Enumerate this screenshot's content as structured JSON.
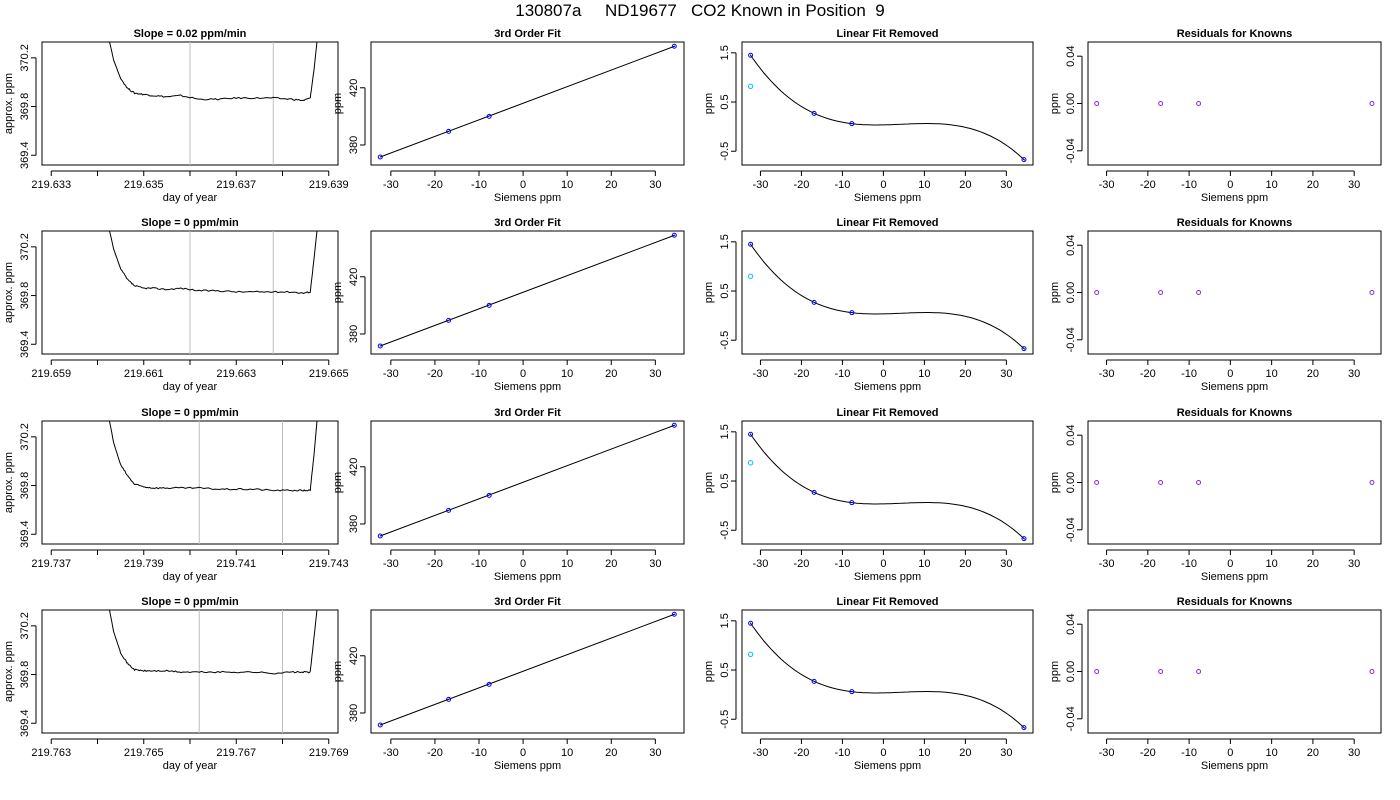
{
  "page": {
    "title": "130807a     ND19677   CO2 Known in Position  9"
  },
  "style": {
    "ink": "#000000",
    "vline_color": "#bebebe",
    "point_blue": "#0000ff",
    "point_cyan": "#00bfff",
    "point_purple": "#8a2be2"
  },
  "chart_data": [
    {
      "type": "line",
      "panel": "trace",
      "row": 1,
      "title": "Slope =  0.02  ppm/min",
      "xlabel": "day of year",
      "ylabel": "approx. ppm",
      "xlim": [
        219.6328,
        219.6392
      ],
      "ylim": [
        369.32,
        370.33
      ],
      "xticks": [
        "219.633",
        "219.634",
        "219.635",
        "219.636",
        "219.637",
        "219.638",
        "219.639"
      ],
      "xtick_labels": [
        "219.633",
        "",
        "219.635",
        "",
        "219.637",
        "",
        "219.639"
      ],
      "yticks": [
        "369.4",
        "369.8",
        "370.2"
      ],
      "vlines": [
        219.636,
        219.6378
      ],
      "x": [
        219.63425,
        219.63435,
        219.6345,
        219.63465,
        219.6348,
        219.635,
        219.6352,
        219.6355,
        219.6358,
        219.6362,
        219.6366,
        219.637,
        219.6374,
        219.6378,
        219.6382,
        219.63845,
        219.6386,
        219.63868,
        219.63875
      ],
      "y": [
        370.35,
        370.18,
        370.03,
        369.95,
        369.91,
        369.9,
        369.89,
        369.88,
        369.89,
        369.86,
        369.86,
        369.87,
        369.87,
        369.87,
        369.86,
        369.85,
        369.87,
        370.1,
        370.35
      ]
    },
    {
      "type": "scatter",
      "panel": "fit",
      "row": 1,
      "title": "3rd Order Fit",
      "xlabel": "Siemens ppm",
      "ylabel": "ppm",
      "xlim": [
        -34.5,
        36.5
      ],
      "ylim": [
        366,
        452
      ],
      "xticks": [
        "-30",
        "-20",
        "-10",
        "0",
        "10",
        "20",
        "30"
      ],
      "yticks": [
        "380",
        "420"
      ],
      "line": {
        "x": [
          -32.5,
          34.5
        ],
        "y": [
          371.5,
          449.2
        ]
      },
      "points": {
        "x": [
          -32.4,
          -16.9,
          -7.7,
          34.3
        ],
        "y": [
          371.6,
          389.5,
          400.0,
          449.0
        ]
      }
    },
    {
      "type": "scatter",
      "panel": "resid_linear",
      "row": 1,
      "title": "Linear Fit Removed",
      "xlabel": "Siemens ppm",
      "ylabel": "ppm",
      "xlim": [
        -34.5,
        36.5
      ],
      "ylim": [
        -0.78,
        1.72
      ],
      "xticks": [
        "-30",
        "-20",
        "-10",
        "0",
        "10",
        "20",
        "30"
      ],
      "yticks": [
        "-0.5",
        "0.5",
        "1.5"
      ],
      "points": {
        "x": [
          -32.4,
          -16.9,
          -7.7,
          34.3
        ],
        "y": [
          1.45,
          0.27,
          0.06,
          -0.67
        ]
      },
      "unknown": {
        "x": [
          -32.4
        ],
        "y": [
          0.82
        ]
      }
    },
    {
      "type": "scatter",
      "panel": "resid_knowns",
      "row": 1,
      "title": "Residuals for Knowns",
      "xlabel": "Siemens ppm",
      "ylabel": "ppm",
      "xlim": [
        -34.5,
        36.5
      ],
      "ylim": [
        -0.052,
        0.052
      ],
      "xticks": [
        "-30",
        "-20",
        "-10",
        "0",
        "10",
        "20",
        "30"
      ],
      "yticks": [
        "-0.04",
        "0.00",
        "0.04"
      ],
      "points": {
        "x": [
          -32.4,
          -16.9,
          -7.7,
          34.3
        ],
        "y": [
          0,
          0,
          0,
          0
        ]
      }
    },
    {
      "type": "line",
      "panel": "trace",
      "row": 2,
      "title": "Slope =  0  ppm/min",
      "xlabel": "day of year",
      "ylabel": "approx. ppm",
      "xlim": [
        219.6588,
        219.6652
      ],
      "ylim": [
        369.32,
        370.33
      ],
      "xticks": [
        "219.659",
        "219.660",
        "219.661",
        "219.662",
        "219.663",
        "219.664",
        "219.665"
      ],
      "xtick_labels": [
        "219.659",
        "",
        "219.661",
        "",
        "219.663",
        "",
        "219.665"
      ],
      "yticks": [
        "369.4",
        "369.8",
        "370.2"
      ],
      "vlines": [
        219.662,
        219.6638
      ],
      "x": [
        219.66025,
        219.66035,
        219.6605,
        219.66065,
        219.6608,
        219.661,
        219.6612,
        219.6615,
        219.6618,
        219.6622,
        219.6626,
        219.663,
        219.6634,
        219.6638,
        219.6642,
        219.66445,
        219.6646,
        219.66468,
        219.66475
      ],
      "y": [
        370.35,
        370.18,
        370.02,
        369.93,
        369.88,
        369.86,
        369.86,
        369.85,
        369.86,
        369.84,
        369.84,
        369.83,
        369.83,
        369.83,
        369.83,
        369.82,
        369.83,
        370.1,
        370.35
      ]
    },
    {
      "type": "scatter",
      "panel": "fit",
      "row": 2,
      "title": "3rd Order Fit",
      "xlabel": "Siemens ppm",
      "ylabel": "ppm",
      "xlim": [
        -34.5,
        36.5
      ],
      "ylim": [
        366,
        452
      ],
      "xticks": [
        "-30",
        "-20",
        "-10",
        "0",
        "10",
        "20",
        "30"
      ],
      "yticks": [
        "380",
        "420"
      ],
      "line": {
        "x": [
          -32.5,
          34.5
        ],
        "y": [
          371.5,
          449.2
        ]
      },
      "points": {
        "x": [
          -32.4,
          -16.9,
          -7.7,
          34.3
        ],
        "y": [
          371.6,
          389.5,
          400.0,
          449.0
        ]
      }
    },
    {
      "type": "scatter",
      "panel": "resid_linear",
      "row": 2,
      "title": "Linear Fit Removed",
      "xlabel": "Siemens ppm",
      "ylabel": "ppm",
      "xlim": [
        -34.5,
        36.5
      ],
      "ylim": [
        -0.78,
        1.72
      ],
      "xticks": [
        "-30",
        "-20",
        "-10",
        "0",
        "10",
        "20",
        "30"
      ],
      "yticks": [
        "-0.5",
        "0.5",
        "1.5"
      ],
      "points": {
        "x": [
          -32.4,
          -16.9,
          -7.7,
          34.3
        ],
        "y": [
          1.45,
          0.27,
          0.06,
          -0.67
        ]
      },
      "unknown": {
        "x": [
          -32.4
        ],
        "y": [
          0.8
        ]
      }
    },
    {
      "type": "scatter",
      "panel": "resid_knowns",
      "row": 2,
      "title": "Residuals for Knowns",
      "xlabel": "Siemens ppm",
      "ylabel": "ppm",
      "xlim": [
        -34.5,
        36.5
      ],
      "ylim": [
        -0.052,
        0.052
      ],
      "xticks": [
        "-30",
        "-20",
        "-10",
        "0",
        "10",
        "20",
        "30"
      ],
      "yticks": [
        "-0.04",
        "0.00",
        "0.04"
      ],
      "points": {
        "x": [
          -32.4,
          -16.9,
          -7.7,
          34.3
        ],
        "y": [
          0,
          0,
          0,
          0
        ]
      }
    },
    {
      "type": "line",
      "panel": "trace",
      "row": 3,
      "title": "Slope =  0  ppm/min",
      "xlabel": "day of year",
      "ylabel": "approx. ppm",
      "xlim": [
        219.7368,
        219.7432
      ],
      "ylim": [
        369.32,
        370.33
      ],
      "xticks": [
        "219.737",
        "219.738",
        "219.739",
        "219.740",
        "219.741",
        "219.742",
        "219.743"
      ],
      "xtick_labels": [
        "219.737",
        "",
        "219.739",
        "",
        "219.741",
        "",
        "219.743"
      ],
      "yticks": [
        "369.4",
        "369.8",
        "370.2"
      ],
      "vlines": [
        219.7402,
        219.742
      ],
      "x": [
        219.73825,
        219.73835,
        219.7385,
        219.73865,
        219.7388,
        219.739,
        219.7392,
        219.7395,
        219.7398,
        219.7402,
        219.7406,
        219.741,
        219.7414,
        219.7418,
        219.7422,
        219.74245,
        219.7426,
        219.74268,
        219.74275
      ],
      "y": [
        370.35,
        370.15,
        369.97,
        369.88,
        369.81,
        369.79,
        369.78,
        369.78,
        369.78,
        369.78,
        369.77,
        369.77,
        369.77,
        369.76,
        369.76,
        369.76,
        369.76,
        370.05,
        370.35
      ]
    },
    {
      "type": "scatter",
      "panel": "fit",
      "row": 3,
      "title": "3rd Order Fit",
      "xlabel": "Siemens ppm",
      "ylabel": "ppm",
      "xlim": [
        -34.5,
        36.5
      ],
      "ylim": [
        366,
        452
      ],
      "xticks": [
        "-30",
        "-20",
        "-10",
        "0",
        "10",
        "20",
        "30"
      ],
      "yticks": [
        "380",
        "420"
      ],
      "line": {
        "x": [
          -32.5,
          34.5
        ],
        "y": [
          371.5,
          449.2
        ]
      },
      "points": {
        "x": [
          -32.4,
          -16.9,
          -7.7,
          34.3
        ],
        "y": [
          371.6,
          389.5,
          400.0,
          449.0
        ]
      }
    },
    {
      "type": "scatter",
      "panel": "resid_linear",
      "row": 3,
      "title": "Linear Fit Removed",
      "xlabel": "Siemens ppm",
      "ylabel": "ppm",
      "xlim": [
        -34.5,
        36.5
      ],
      "ylim": [
        -0.78,
        1.72
      ],
      "xticks": [
        "-30",
        "-20",
        "-10",
        "0",
        "10",
        "20",
        "30"
      ],
      "yticks": [
        "-0.5",
        "0.5",
        "1.5"
      ],
      "points": {
        "x": [
          -32.4,
          -16.9,
          -7.7,
          34.3
        ],
        "y": [
          1.45,
          0.27,
          0.06,
          -0.67
        ]
      },
      "unknown": {
        "x": [
          -32.4
        ],
        "y": [
          0.87
        ]
      }
    },
    {
      "type": "scatter",
      "panel": "resid_knowns",
      "row": 3,
      "title": "Residuals for Knowns",
      "xlabel": "Siemens ppm",
      "ylabel": "ppm",
      "xlim": [
        -34.5,
        36.5
      ],
      "ylim": [
        -0.052,
        0.052
      ],
      "xticks": [
        "-30",
        "-20",
        "-10",
        "0",
        "10",
        "20",
        "30"
      ],
      "yticks": [
        "-0.04",
        "0.00",
        "0.04"
      ],
      "points": {
        "x": [
          -32.4,
          -16.9,
          -7.7,
          34.3
        ],
        "y": [
          0,
          0,
          0,
          0
        ]
      }
    },
    {
      "type": "line",
      "panel": "trace",
      "row": 4,
      "title": "Slope =  0  ppm/min",
      "xlabel": "day of year",
      "ylabel": "approx. ppm",
      "xlim": [
        219.7628,
        219.7692
      ],
      "ylim": [
        369.32,
        370.33
      ],
      "xticks": [
        "219.763",
        "219.764",
        "219.765",
        "219.766",
        "219.767",
        "219.768",
        "219.769"
      ],
      "xtick_labels": [
        "219.763",
        "",
        "219.765",
        "",
        "219.767",
        "",
        "219.769"
      ],
      "yticks": [
        "369.4",
        "369.8",
        "370.2"
      ],
      "vlines": [
        219.7662,
        219.768
      ],
      "x": [
        219.76425,
        219.76435,
        219.7645,
        219.76465,
        219.7648,
        219.765,
        219.7652,
        219.7655,
        219.7658,
        219.7662,
        219.7666,
        219.767,
        219.7674,
        219.7678,
        219.7682,
        219.76845,
        219.7686,
        219.76868,
        219.76875
      ],
      "y": [
        370.35,
        370.15,
        369.98,
        369.89,
        369.84,
        369.83,
        369.83,
        369.83,
        369.82,
        369.82,
        369.82,
        369.82,
        369.82,
        369.81,
        369.82,
        369.82,
        369.82,
        370.1,
        370.35
      ]
    },
    {
      "type": "scatter",
      "panel": "fit",
      "row": 4,
      "title": "3rd Order Fit",
      "xlabel": "Siemens ppm",
      "ylabel": "ppm",
      "xlim": [
        -34.5,
        36.5
      ],
      "ylim": [
        366,
        452
      ],
      "xticks": [
        "-30",
        "-20",
        "-10",
        "0",
        "10",
        "20",
        "30"
      ],
      "yticks": [
        "380",
        "420"
      ],
      "line": {
        "x": [
          -32.5,
          34.5
        ],
        "y": [
          371.5,
          449.2
        ]
      },
      "points": {
        "x": [
          -32.4,
          -16.9,
          -7.7,
          34.3
        ],
        "y": [
          371.6,
          389.5,
          400.0,
          449.0
        ]
      }
    },
    {
      "type": "scatter",
      "panel": "resid_linear",
      "row": 4,
      "title": "Linear Fit Removed",
      "xlabel": "Siemens ppm",
      "ylabel": "ppm",
      "xlim": [
        -34.5,
        36.5
      ],
      "ylim": [
        -0.78,
        1.72
      ],
      "xticks": [
        "-30",
        "-20",
        "-10",
        "0",
        "10",
        "20",
        "30"
      ],
      "yticks": [
        "-0.5",
        "0.5",
        "1.5"
      ],
      "points": {
        "x": [
          -32.4,
          -16.9,
          -7.7,
          34.3
        ],
        "y": [
          1.45,
          0.27,
          0.06,
          -0.67
        ]
      },
      "unknown": {
        "x": [
          -32.4
        ],
        "y": [
          0.82
        ]
      }
    },
    {
      "type": "scatter",
      "panel": "resid_knowns",
      "row": 4,
      "title": "Residuals for Knowns",
      "xlabel": "Siemens ppm",
      "ylabel": "ppm",
      "xlim": [
        -34.5,
        36.5
      ],
      "ylim": [
        -0.052,
        0.052
      ],
      "xticks": [
        "-30",
        "-20",
        "-10",
        "0",
        "10",
        "20",
        "30"
      ],
      "yticks": [
        "-0.04",
        "0.00",
        "0.04"
      ],
      "points": {
        "x": [
          -32.4,
          -16.9,
          -7.7,
          34.3
        ],
        "y": [
          0,
          0,
          0,
          0
        ]
      }
    }
  ]
}
